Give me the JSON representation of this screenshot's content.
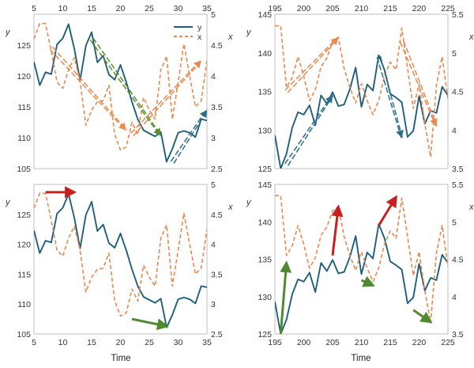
{
  "colors": {
    "y": "#1f5f7a",
    "x": "#e8894f",
    "dash_blue": "#2a6e8c",
    "dash_orange": "#e8894f",
    "dash_green": "#5a8f2a",
    "red": "#c8201f",
    "green": "#4f8a2f"
  },
  "legend": {
    "y": "y",
    "x": "x"
  },
  "xlabel": "Time",
  "chart_data": [
    {
      "id": "top-left",
      "type": "line",
      "xlabel": "",
      "ylabel": "y",
      "y2label": "x",
      "xlim": [
        5,
        35
      ],
      "ylim": [
        105,
        130
      ],
      "y2lim": [
        2.5,
        5
      ],
      "xticks": [
        "5",
        "10",
        "15",
        "20",
        "25",
        "30",
        "35"
      ],
      "xticks_position": "top",
      "yticks": [
        "105",
        "110",
        "115",
        "120",
        "125"
      ],
      "y2ticks": [
        "2.5",
        "3",
        "3.5",
        "4",
        "4.5",
        "5"
      ],
      "series": [
        {
          "name": "y",
          "axis": "left",
          "style": "solid",
          "x": [
            5,
            6,
            7,
            8,
            9,
            10,
            11,
            12,
            13,
            14,
            15,
            16,
            17,
            18,
            19,
            20,
            21,
            22,
            23,
            24,
            25,
            26,
            27,
            28,
            29,
            30,
            31,
            32,
            33,
            34,
            35
          ],
          "values": [
            122.3,
            118.5,
            120.6,
            120.3,
            125.1,
            126.1,
            128.4,
            124.4,
            119.3,
            124.9,
            127.1,
            122.2,
            123.3,
            120.2,
            119.4,
            121.8,
            119.0,
            115.8,
            113.0,
            111.2,
            110.7,
            110.2,
            110.9,
            106.1,
            108.2,
            110.8,
            111.1,
            110.8,
            110.1,
            113.0,
            112.8
          ]
        },
        {
          "name": "x",
          "axis": "right",
          "style": "dashed",
          "x": [
            5,
            6,
            7,
            8,
            9,
            10,
            11,
            12,
            13,
            14,
            15,
            16,
            17,
            18,
            19,
            20,
            21,
            22,
            23,
            24,
            25,
            26,
            27,
            28,
            29,
            30,
            31,
            32,
            33,
            34,
            35
          ],
          "values": [
            4.6,
            4.85,
            4.85,
            4.4,
            3.9,
            3.8,
            4.1,
            4.3,
            3.9,
            3.2,
            3.45,
            3.58,
            3.6,
            3.85,
            3.05,
            2.8,
            2.85,
            3.25,
            3.05,
            3.65,
            3.45,
            3.3,
            4.1,
            4.32,
            3.3,
            3.9,
            4.52,
            4.0,
            3.5,
            3.6,
            4.25
          ]
        }
      ],
      "annotations": [
        {
          "kind": "double-dashed-arrow",
          "color": "dash_orange",
          "from": [
            8,
            124.5
          ],
          "to": [
            21,
            111.2
          ]
        },
        {
          "kind": "double-dashed-arrow",
          "color": "dash_green",
          "from": [
            15,
            126.0
          ],
          "to": [
            27,
            110.3
          ]
        },
        {
          "kind": "double-dashed-arrow",
          "color": "dash_orange",
          "from": [
            22,
            110.5
          ],
          "to": [
            34,
            122.5
          ]
        },
        {
          "kind": "double-dashed-arrow",
          "color": "dash_blue",
          "from": [
            29,
            106.0
          ],
          "to": [
            35,
            114.5
          ]
        }
      ]
    },
    {
      "id": "top-right",
      "type": "line",
      "xlabel": "",
      "ylabel": "y",
      "y2label": "x",
      "xlim": [
        195,
        225
      ],
      "ylim": [
        125,
        145
      ],
      "y2lim": [
        3.5,
        5.5
      ],
      "xticks": [
        "195",
        "200",
        "205",
        "210",
        "215",
        "220",
        "225"
      ],
      "xticks_position": "top",
      "yticks": [
        "125",
        "130",
        "135",
        "140",
        "145"
      ],
      "y2ticks": [
        "3.5",
        "4",
        "4.5",
        "5",
        "5.5"
      ],
      "series": [
        {
          "name": "y",
          "axis": "left",
          "style": "solid",
          "x": [
            195,
            196,
            197,
            198,
            199,
            200,
            201,
            202,
            203,
            204,
            205,
            206,
            207,
            208,
            209,
            210,
            211,
            212,
            213,
            214,
            215,
            216,
            217,
            218,
            219,
            220,
            221,
            222,
            223,
            224,
            225
          ],
          "values": [
            129.3,
            125.0,
            126.9,
            130.3,
            132.3,
            132.0,
            133.2,
            130.6,
            134.5,
            133.4,
            134.9,
            133.1,
            133.3,
            135.3,
            138.1,
            133.0,
            135.9,
            135.1,
            139.7,
            137.8,
            134.7,
            134.2,
            133.6,
            129.1,
            129.9,
            134.4,
            130.8,
            132.5,
            132.2,
            135.6,
            134.5
          ]
        },
        {
          "name": "x",
          "axis": "right",
          "style": "dashed",
          "x": [
            195,
            196,
            197,
            198,
            199,
            200,
            201,
            202,
            203,
            204,
            205,
            206,
            207,
            208,
            209,
            210,
            211,
            212,
            213,
            214,
            215,
            216,
            217,
            218,
            219,
            220,
            221,
            222,
            223,
            224,
            225
          ],
          "values": [
            5.35,
            5.35,
            4.55,
            4.68,
            4.95,
            4.7,
            4.38,
            4.52,
            4.82,
            4.93,
            5.15,
            5.2,
            4.8,
            4.55,
            4.35,
            4.6,
            4.38,
            4.2,
            4.38,
            4.7,
            4.88,
            4.78,
            5.32,
            4.8,
            4.28,
            4.6,
            4.08,
            3.65,
            4.58,
            4.95,
            4.4
          ]
        }
      ],
      "annotations": [
        {
          "kind": "double-dashed-arrow",
          "color": "dash_orange",
          "from": [
            197,
            135.0
          ],
          "to": [
            206,
            142.0
          ]
        },
        {
          "kind": "double-dashed-arrow",
          "color": "dash_blue",
          "from": [
            197,
            125.5
          ],
          "to": [
            205,
            134.5
          ]
        },
        {
          "kind": "double-dashed-arrow",
          "color": "dash_blue",
          "from": [
            213,
            139.5
          ],
          "to": [
            217,
            129.0
          ]
        },
        {
          "kind": "double-dashed-arrow",
          "color": "dash_orange",
          "from": [
            217,
            141.5
          ],
          "to": [
            223,
            130.5
          ]
        }
      ]
    },
    {
      "id": "bottom-left",
      "type": "line",
      "xlabel": "Time",
      "ylabel": "y",
      "y2label": "x",
      "xlim": [
        5,
        35
      ],
      "ylim": [
        105,
        130
      ],
      "y2lim": [
        2.5,
        5
      ],
      "xticks": [
        "5",
        "10",
        "15",
        "20",
        "25",
        "30",
        "35"
      ],
      "xticks_position": "bottom",
      "yticks": [
        "105",
        "110",
        "115",
        "120",
        "125"
      ],
      "y2ticks": [
        "2.5",
        "3",
        "3.5",
        "4",
        "4.5",
        "5"
      ],
      "series": [
        {
          "name": "y",
          "axis": "left",
          "style": "solid",
          "x": [
            5,
            6,
            7,
            8,
            9,
            10,
            11,
            12,
            13,
            14,
            15,
            16,
            17,
            18,
            19,
            20,
            21,
            22,
            23,
            24,
            25,
            26,
            27,
            28,
            29,
            30,
            31,
            32,
            33,
            34,
            35
          ],
          "values": [
            122.3,
            118.5,
            120.6,
            120.3,
            125.1,
            126.1,
            128.4,
            124.4,
            119.3,
            124.9,
            127.1,
            122.2,
            123.3,
            120.2,
            119.4,
            121.8,
            119.0,
            115.8,
            113.0,
            111.2,
            110.7,
            110.2,
            110.9,
            106.1,
            108.2,
            110.8,
            111.1,
            110.8,
            110.1,
            113.0,
            112.8
          ]
        },
        {
          "name": "x",
          "axis": "right",
          "style": "dashed",
          "x": [
            5,
            6,
            7,
            8,
            9,
            10,
            11,
            12,
            13,
            14,
            15,
            16,
            17,
            18,
            19,
            20,
            21,
            22,
            23,
            24,
            25,
            26,
            27,
            28,
            29,
            30,
            31,
            32,
            33,
            34,
            35
          ],
          "values": [
            4.6,
            4.85,
            4.85,
            4.4,
            3.9,
            3.8,
            4.1,
            4.3,
            3.9,
            3.2,
            3.45,
            3.58,
            3.6,
            3.85,
            3.05,
            2.8,
            2.85,
            3.25,
            3.05,
            3.65,
            3.45,
            3.3,
            4.1,
            4.32,
            3.3,
            3.9,
            4.52,
            4.0,
            3.5,
            3.6,
            4.25
          ]
        }
      ],
      "annotations": [
        {
          "kind": "solid-arrow",
          "color": "red",
          "from": [
            7,
            128.7
          ],
          "to": [
            12,
            128.7
          ]
        },
        {
          "kind": "solid-arrow",
          "color": "green",
          "from": [
            22,
            107.5
          ],
          "to": [
            28,
            106.3
          ]
        }
      ]
    },
    {
      "id": "bottom-right",
      "type": "line",
      "xlabel": "Time",
      "ylabel": "y",
      "y2label": "x",
      "xlim": [
        195,
        225
      ],
      "ylim": [
        125,
        145
      ],
      "y2lim": [
        3.5,
        5.5
      ],
      "xticks": [
        "195",
        "200",
        "205",
        "210",
        "215",
        "220",
        "225"
      ],
      "xticks_position": "bottom",
      "yticks": [
        "125",
        "130",
        "135",
        "140",
        "145"
      ],
      "y2ticks": [
        "3.5",
        "4",
        "4.5",
        "5",
        "5.5"
      ],
      "series": [
        {
          "name": "y",
          "axis": "left",
          "style": "solid",
          "x": [
            195,
            196,
            197,
            198,
            199,
            200,
            201,
            202,
            203,
            204,
            205,
            206,
            207,
            208,
            209,
            210,
            211,
            212,
            213,
            214,
            215,
            216,
            217,
            218,
            219,
            220,
            221,
            222,
            223,
            224,
            225
          ],
          "values": [
            129.3,
            125.0,
            126.9,
            130.3,
            132.3,
            132.0,
            133.2,
            130.6,
            134.5,
            133.4,
            134.9,
            133.1,
            133.3,
            135.3,
            138.1,
            133.0,
            135.9,
            135.1,
            139.7,
            137.8,
            134.7,
            134.2,
            133.6,
            129.1,
            129.9,
            134.4,
            130.8,
            132.5,
            132.2,
            135.6,
            134.5
          ]
        },
        {
          "name": "x",
          "axis": "right",
          "style": "dashed",
          "x": [
            195,
            196,
            197,
            198,
            199,
            200,
            201,
            202,
            203,
            204,
            205,
            206,
            207,
            208,
            209,
            210,
            211,
            212,
            213,
            214,
            215,
            216,
            217,
            218,
            219,
            220,
            221,
            222,
            223,
            224,
            225
          ],
          "values": [
            5.35,
            5.35,
            4.55,
            4.68,
            4.95,
            4.7,
            4.38,
            4.52,
            4.82,
            4.93,
            5.15,
            5.2,
            4.8,
            4.55,
            4.35,
            4.6,
            4.38,
            4.2,
            4.38,
            4.7,
            4.88,
            4.78,
            5.32,
            4.8,
            4.28,
            4.6,
            4.08,
            3.65,
            4.58,
            4.95,
            4.4
          ]
        }
      ],
      "annotations": [
        {
          "kind": "solid-arrow",
          "color": "green",
          "from": [
            196,
            125.0
          ],
          "to": [
            197,
            134.5
          ]
        },
        {
          "kind": "solid-arrow",
          "color": "red",
          "from": [
            205,
            135.5
          ],
          "to": [
            206,
            142.0
          ]
        },
        {
          "kind": "solid-arrow",
          "color": "green",
          "from": [
            210,
            132.2
          ],
          "to": [
            212,
            131.5
          ]
        },
        {
          "kind": "solid-arrow",
          "color": "red",
          "from": [
            213,
            139.5
          ],
          "to": [
            216,
            143.3
          ]
        },
        {
          "kind": "solid-arrow",
          "color": "green",
          "from": [
            219,
            128.2
          ],
          "to": [
            222,
            126.6
          ]
        }
      ]
    }
  ]
}
